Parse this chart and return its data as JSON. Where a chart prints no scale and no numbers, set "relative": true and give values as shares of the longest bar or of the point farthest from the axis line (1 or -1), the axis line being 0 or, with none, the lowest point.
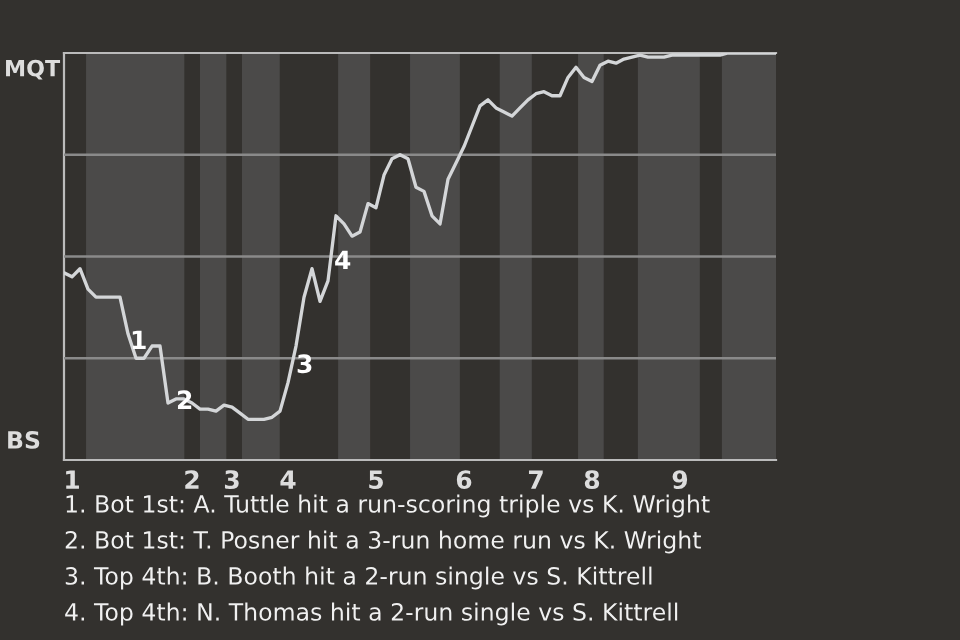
{
  "chart_data": {
    "type": "line",
    "relative": true,
    "categories": [
      null,
      "1",
      null,
      null,
      null,
      null,
      null,
      null,
      null,
      null,
      null,
      null,
      null,
      null,
      null,
      null,
      "2",
      null,
      null,
      null,
      null,
      "3",
      null,
      null,
      null,
      null,
      null,
      null,
      "4",
      null,
      null,
      null,
      null,
      null,
      null,
      null,
      null,
      null,
      null,
      "5",
      null,
      null,
      null,
      null,
      null,
      null,
      null,
      null,
      null,
      null,
      "6",
      null,
      null,
      null,
      null,
      null,
      null,
      null,
      null,
      "7",
      null,
      null,
      null,
      null,
      null,
      null,
      "8",
      null,
      null,
      null,
      null,
      null,
      null,
      null,
      null,
      null,
      null,
      "9",
      null,
      null,
      null,
      null,
      null,
      null,
      null,
      null,
      null,
      null,
      null,
      null
    ],
    "series": [
      {
        "color": "#d4d6d8",
        "values": [
          0.46,
          0.45,
          0.47,
          0.42,
          0.4,
          0.4,
          0.4,
          0.4,
          0.31,
          0.25,
          0.25,
          0.28,
          0.28,
          0.14,
          0.15,
          0.15,
          0.14,
          0.125,
          0.125,
          0.12,
          0.135,
          0.13,
          0.115,
          0.1,
          0.1,
          0.1,
          0.105,
          0.12,
          0.19,
          0.28,
          0.4,
          0.47,
          0.39,
          0.44,
          0.6,
          0.58,
          0.55,
          0.56,
          0.63,
          0.62,
          0.7,
          0.74,
          0.75,
          0.74,
          0.67,
          0.66,
          0.6,
          0.58,
          0.69,
          0.73,
          0.77,
          0.82,
          0.87,
          0.885,
          0.865,
          0.855,
          0.845,
          0.865,
          0.885,
          0.9,
          0.905,
          0.895,
          0.895,
          0.94,
          0.965,
          0.94,
          0.93,
          0.97,
          0.98,
          0.975,
          0.985,
          0.99,
          0.995,
          0.99,
          0.99,
          0.99,
          0.995,
          0.995,
          0.995,
          0.995,
          0.995,
          0.995,
          0.995,
          1.0,
          1.0,
          1.0,
          1.0,
          1.0,
          1.0,
          1.0
        ]
      }
    ],
    "grid": "y",
    "marker": "none",
    "line_style": "solid",
    "annotations": [
      "MQT",
      "BS",
      "1",
      "2",
      "3",
      "4",
      "1. Bot 1st: A. Tuttle hit a run-scoring triple vs K. Wright",
      "2. Bot 1st: T. Posner hit a 3-run home run vs K. Wright",
      "3. Top 4th: B. Booth hit a 2-run single vs S. Kittrell",
      "4. Top 4th: N. Thomas hit a 2-run single vs S. Kittrell"
    ]
  }
}
